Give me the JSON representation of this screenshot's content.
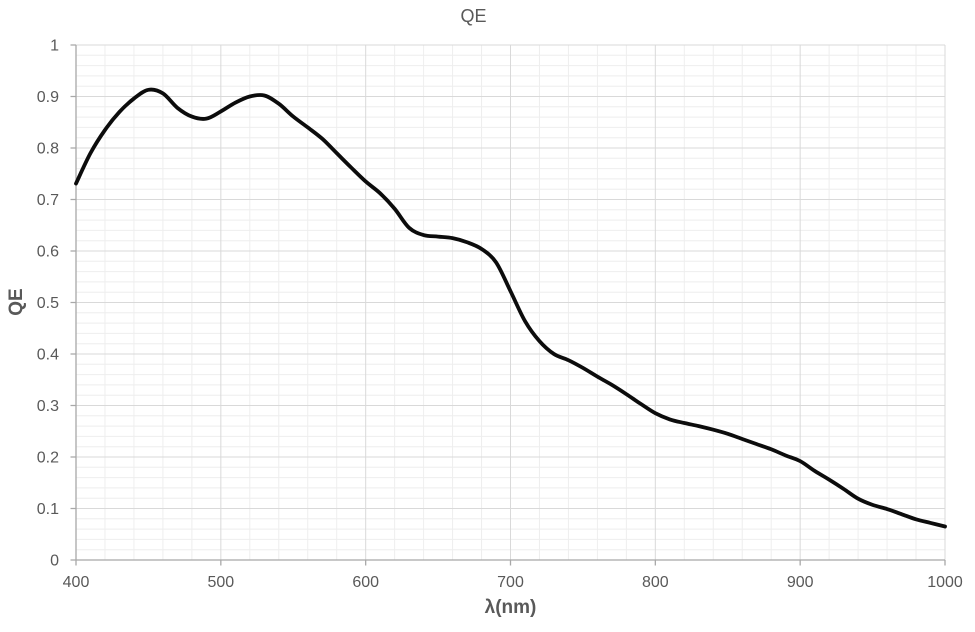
{
  "chart_data": {
    "type": "line",
    "title": "QE",
    "xlabel": "λ(nm)",
    "ylabel": "QE",
    "xlim": [
      400,
      1000
    ],
    "ylim": [
      0,
      1
    ],
    "x_major_step": 100,
    "x_minor_step": 20,
    "y_major_step": 0.1,
    "y_minor_step": 0.02,
    "x_tick_labels": [
      "400",
      "500",
      "600",
      "700",
      "800",
      "900",
      "1000"
    ],
    "y_tick_labels": [
      "0",
      "0.1",
      "0.2",
      "0.3",
      "0.4",
      "0.5",
      "0.6",
      "0.7",
      "0.8",
      "0.9",
      "1"
    ],
    "grid": "major and minor gridlines, light gray",
    "legend_position": "none",
    "series": [
      {
        "name": "QE",
        "smooth": true,
        "x": [
          400,
          410,
          420,
          430,
          440,
          450,
          460,
          470,
          480,
          490,
          500,
          510,
          520,
          530,
          540,
          550,
          560,
          570,
          580,
          590,
          600,
          610,
          620,
          630,
          640,
          650,
          660,
          670,
          680,
          690,
          700,
          710,
          720,
          730,
          740,
          750,
          760,
          770,
          780,
          790,
          800,
          810,
          820,
          830,
          840,
          850,
          860,
          870,
          880,
          890,
          900,
          910,
          920,
          930,
          940,
          950,
          960,
          970,
          980,
          990,
          1000
        ],
        "y": [
          0.731,
          0.79,
          0.835,
          0.87,
          0.896,
          0.913,
          0.906,
          0.878,
          0.861,
          0.857,
          0.871,
          0.888,
          0.9,
          0.902,
          0.886,
          0.861,
          0.84,
          0.818,
          0.79,
          0.762,
          0.735,
          0.712,
          0.682,
          0.645,
          0.631,
          0.628,
          0.625,
          0.617,
          0.604,
          0.578,
          0.522,
          0.464,
          0.425,
          0.4,
          0.388,
          0.373,
          0.356,
          0.34,
          0.322,
          0.303,
          0.285,
          0.273,
          0.266,
          0.26,
          0.253,
          0.245,
          0.235,
          0.225,
          0.215,
          0.203,
          0.192,
          0.173,
          0.156,
          0.138,
          0.119,
          0.107,
          0.099,
          0.089,
          0.079,
          0.072,
          0.065
        ]
      }
    ]
  },
  "colors": {
    "background": "#ffffff",
    "grid_major": "#d9d9d9",
    "grid_minor": "#eeeeee",
    "axis_line": "#a8a8a8",
    "text": "#595959",
    "series_line": "#0c0c0c"
  }
}
